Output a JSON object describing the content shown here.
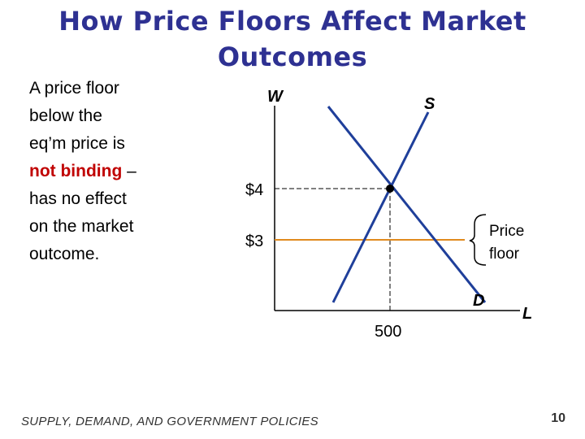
{
  "slide": {
    "title_line1": "How Price Floors Affect Market",
    "title_line2": "Outcomes",
    "text": {
      "line1": "A price floor",
      "line2": "below the",
      "line3": "eq’m price is",
      "emphasis": "not binding",
      "after_emphasis": " –",
      "line5": "has no effect",
      "line6": "on the market",
      "line7": "outcome."
    },
    "footer": "SUPPLY, DEMAND, AND GOVERNMENT POLICIES",
    "page_number": "10"
  },
  "diagram": {
    "y_axis_label": "W",
    "x_axis_label": "L",
    "supply_label": "S",
    "demand_label": "D",
    "eq_price_label": "$4",
    "floor_price_label": "$3",
    "eq_quantity_label": "500",
    "floor_label_line1": "Price",
    "floor_label_line2": "floor",
    "colors": {
      "curves": "#1f3f9a",
      "price_floor": "#e08a1e",
      "axes": "#000000",
      "title": "#2e3192",
      "emphasis": "#c00000"
    }
  }
}
